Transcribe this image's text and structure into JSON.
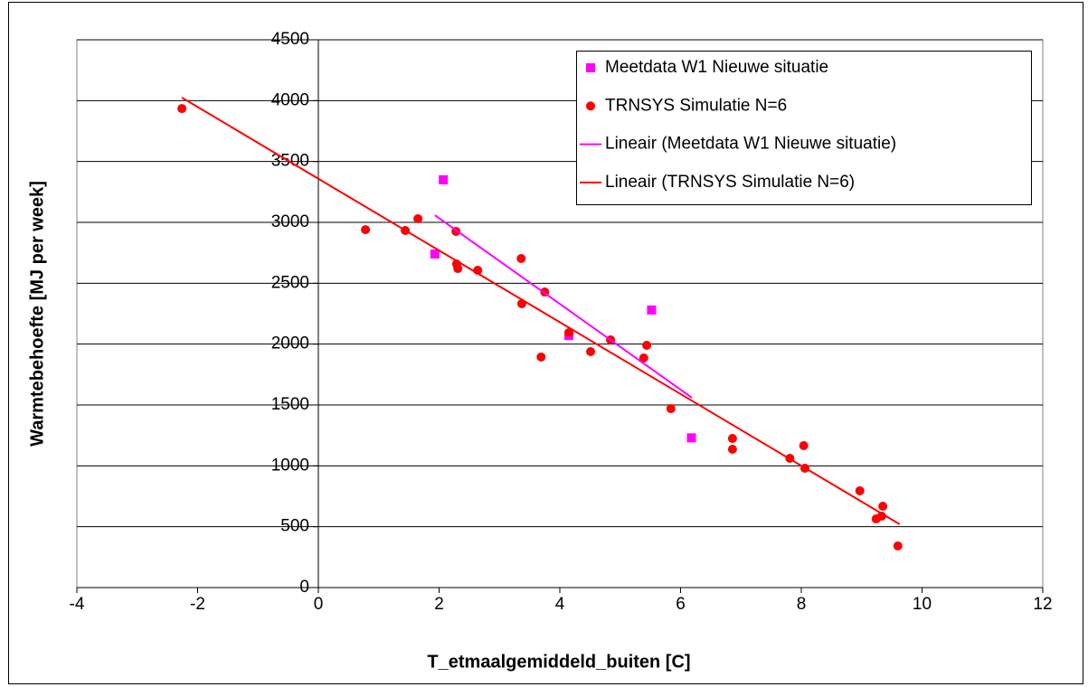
{
  "chart_data": {
    "type": "scatter",
    "xlabel": "T_etmaalgemiddeld_buiten [C]",
    "ylabel": "Warmtebehoefte [MJ per week]",
    "xlim": [
      -4,
      12
    ],
    "xticks": [
      -4,
      -2,
      0,
      2,
      4,
      6,
      8,
      10,
      12
    ],
    "ylim": [
      0,
      4500
    ],
    "yticks": [
      0,
      500,
      1000,
      1500,
      2000,
      2500,
      3000,
      3500,
      4000,
      4500
    ],
    "grid": true,
    "legend": "top-right",
    "series": [
      {
        "name": "Meetdata W1 Nieuwe situatie",
        "color": "#ff00ff",
        "marker": "square",
        "x": [
          2.07,
          1.93,
          4.15,
          5.52,
          6.18
        ],
        "values": [
          3350,
          2740,
          2070,
          2280,
          1230
        ]
      },
      {
        "name": "TRNSYS Simulatie N=6",
        "color": "#ff0000",
        "marker": "circle",
        "x": [
          -2.26,
          0.78,
          1.44,
          1.65,
          2.28,
          2.29,
          2.31,
          2.64,
          3.36,
          3.37,
          3.69,
          3.75,
          4.15,
          4.51,
          4.84,
          5.39,
          5.44,
          5.84,
          6.86,
          6.86,
          7.81,
          8.04,
          8.06,
          8.97,
          9.35,
          9.24,
          9.33,
          9.6
        ],
        "values": [
          3935,
          2940,
          2933,
          3030,
          2926,
          2658,
          2621,
          2606,
          2703,
          2332,
          1894,
          2428,
          2094,
          1938,
          2035,
          1886,
          1990,
          1470,
          1225,
          1136,
          1062,
          1166,
          980,
          795,
          668,
          564,
          587,
          342
        ]
      },
      {
        "name": "Lineair (Meetdata W1 Nieuwe situatie)",
        "color": "#ff00ff",
        "marker": "line",
        "x": [
          1.93,
          6.19
        ],
        "values": [
          3059,
          1559
        ]
      },
      {
        "name": "Lineair (TRNSYS Simulatie N=6)",
        "color": "#ff0000",
        "marker": "line",
        "x": [
          -2.26,
          9.63
        ],
        "values": [
          4025,
          520
        ]
      }
    ]
  }
}
